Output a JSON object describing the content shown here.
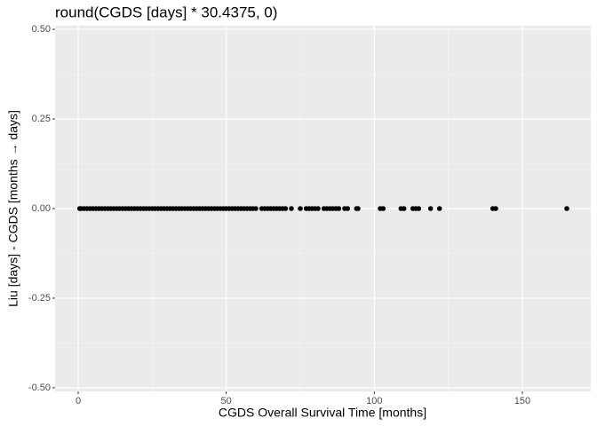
{
  "chart_data": {
    "type": "scatter",
    "title": "round(CGDS [days] * 30.4375, 0)",
    "x_label": "CGDS Overall Survival Time [months]",
    "y_label": "Liu [days] - CGDS [months → days]",
    "color": "#000000",
    "x": [
      0.5,
      1,
      2,
      3,
      4,
      5,
      6,
      7,
      8,
      9,
      10,
      11,
      12,
      13,
      14,
      15,
      16,
      17,
      18,
      19,
      20,
      21,
      22,
      23,
      24,
      25,
      26,
      27,
      28,
      29,
      30,
      31,
      32,
      33,
      34,
      35,
      36,
      37,
      38,
      39,
      40,
      41,
      42,
      43,
      44,
      45,
      46,
      47,
      48,
      49,
      50,
      51,
      52,
      53,
      54,
      55,
      56,
      57,
      58,
      59,
      60,
      62,
      63,
      64,
      65,
      66,
      67,
      68,
      69,
      70,
      72,
      75,
      77,
      78,
      79,
      80,
      81,
      83,
      84,
      85,
      86,
      87,
      88,
      90,
      91,
      94,
      94.5,
      102,
      103,
      109,
      110,
      113,
      114,
      115,
      119,
      122,
      140,
      141,
      165
    ],
    "y": [
      0,
      0,
      0,
      0,
      0,
      0,
      0,
      0,
      0,
      0,
      0,
      0,
      0,
      0,
      0,
      0,
      0,
      0,
      0,
      0,
      0,
      0,
      0,
      0,
      0,
      0,
      0,
      0,
      0,
      0,
      0,
      0,
      0,
      0,
      0,
      0,
      0,
      0,
      0,
      0,
      0,
      0,
      0,
      0,
      0,
      0,
      0,
      0,
      0,
      0,
      0,
      0,
      0,
      0,
      0,
      0,
      0,
      0,
      0,
      0,
      0,
      0,
      0,
      0,
      0,
      0,
      0,
      0,
      0,
      0,
      0,
      0,
      0,
      0,
      0,
      0,
      0,
      0,
      0,
      0,
      0,
      0,
      0,
      0,
      0,
      0,
      0,
      0,
      0,
      0,
      0,
      0,
      0,
      0,
      0,
      0,
      0,
      0,
      0
    ],
    "xlim": [
      -7.8,
      173.1
    ],
    "ylim": [
      -0.51,
      0.51
    ],
    "xticks": [
      0,
      50,
      100,
      150
    ],
    "yticks": [
      {
        "value": -0.5,
        "label": "-0.50"
      },
      {
        "value": -0.25,
        "label": "-0.25"
      },
      {
        "value": 0,
        "label": "0.00"
      },
      {
        "value": 0.25,
        "label": "0.25"
      },
      {
        "value": 0.5,
        "label": "0.50"
      }
    ],
    "xminor": [
      25,
      75,
      125
    ],
    "yminor": [
      -0.375,
      -0.125,
      0.125,
      0.375
    ],
    "grid": true
  }
}
